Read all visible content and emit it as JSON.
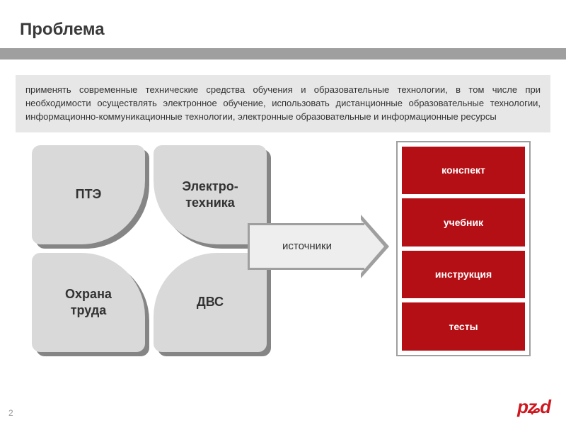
{
  "title": "Проблема",
  "description": "применять современные технические средства обучения и образовательные технологии, в том числе при необходимости осуществлять электронное обучение, использовать дистанционные образовательные технологии, информационно-коммуникационные технологии, электронные образовательные и информационные ресурсы",
  "cluster": {
    "topLeft": "ПТЭ",
    "topRight": "Электро-\nтехника",
    "bottomLeft": "Охрана\nтруда",
    "bottomRight": "ДВС"
  },
  "arrowLabel": "источники",
  "stack": {
    "items": [
      "конспект",
      "учебник",
      "инструкция",
      "тесты"
    ],
    "itemColors": [
      "#b30f15",
      "#b30f15",
      "#b30f15",
      "#b30f15"
    ],
    "borderColor": "#9f9f9f"
  },
  "colors": {
    "titleBar": "#9f9f9f",
    "descriptionBg": "#e7e7e7",
    "petalBg": "#d9d9d9",
    "petalShadow": "#858585",
    "arrowFill": "#eeeeee",
    "arrowStroke": "#9f9f9f",
    "logo": "#cf171f",
    "background": "#ffffff",
    "textDark": "#333333"
  },
  "typography": {
    "titleFontSize": 24,
    "petalFontSize": 18,
    "descFontSize": 13,
    "stackFontSize": 14,
    "arrowFontSize": 15
  },
  "pageNumber": "2",
  "logoText": "pʑd"
}
